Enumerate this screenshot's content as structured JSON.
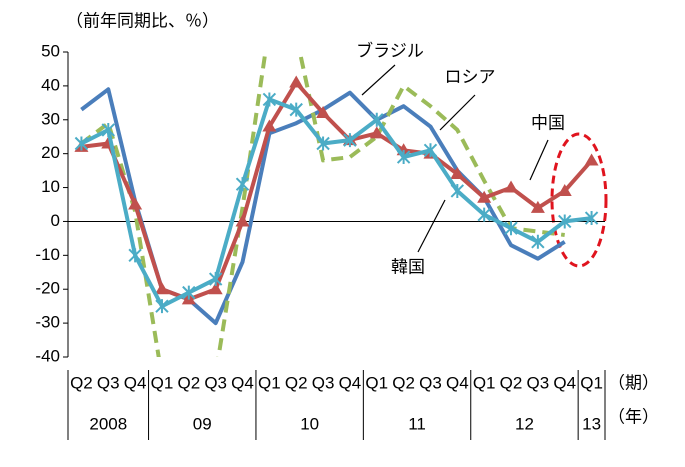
{
  "chart_data": {
    "type": "line",
    "y_label": "（前年同期比、％）",
    "x_label_quarter": "（期）",
    "x_label_year": "（年）",
    "categories": [
      "Q2",
      "Q3",
      "Q4",
      "Q1",
      "Q2",
      "Q3",
      "Q4",
      "Q1",
      "Q2",
      "Q3",
      "Q4",
      "Q1",
      "Q2",
      "Q3",
      "Q4",
      "Q1",
      "Q2",
      "Q3",
      "Q4",
      "Q1"
    ],
    "year_groups": [
      {
        "label": "2008",
        "span": 3
      },
      {
        "label": "09",
        "span": 4
      },
      {
        "label": "10",
        "span": 4
      },
      {
        "label": "11",
        "span": 4
      },
      {
        "label": "12",
        "span": 4
      },
      {
        "label": "13",
        "span": 1
      }
    ],
    "ylim": [
      -40,
      50
    ],
    "yticks": [
      -40,
      -30,
      -20,
      -10,
      0,
      10,
      20,
      30,
      40,
      50
    ],
    "series": [
      {
        "name": "ブラジル",
        "color": "#4a7ebb",
        "marker": "none",
        "dash": false,
        "values": [
          33,
          39,
          6,
          -20,
          -23,
          -30,
          -12,
          26,
          29,
          33,
          38,
          30,
          34,
          28,
          15,
          7,
          -7,
          -11,
          -6,
          null
        ]
      },
      {
        "name": "ロシア",
        "color": "#9bbb59",
        "marker": "none",
        "dash": true,
        "values": [
          23,
          29,
          3,
          -46,
          -50,
          -45,
          4,
          58,
          55,
          18,
          19,
          25,
          40,
          34,
          27,
          12,
          -2,
          -3,
          -4,
          null
        ]
      },
      {
        "name": "中国",
        "color": "#c0504d",
        "marker": "triangle",
        "dash": false,
        "values": [
          22,
          23,
          5,
          -20,
          -23,
          -20,
          0,
          28,
          41,
          32,
          24,
          26,
          21,
          20,
          14,
          7,
          10,
          4,
          9,
          18
        ]
      },
      {
        "name": "韓国",
        "color": "#4bacc6",
        "marker": "star",
        "dash": false,
        "values": [
          23,
          27,
          -10,
          -25,
          -21,
          -17,
          11,
          36,
          33,
          23,
          24,
          30,
          19,
          21,
          9,
          2,
          -2,
          -6,
          0,
          1
        ]
      }
    ]
  }
}
